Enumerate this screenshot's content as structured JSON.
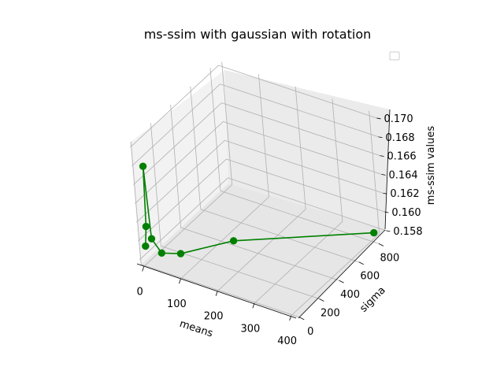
{
  "chart_data": {
    "type": "line",
    "projection": "3d",
    "title": "ms-ssim with gaussian with rotation",
    "xlabel": "means",
    "ylabel": "sigma",
    "zlabel": "ms-ssim values",
    "xlim": [
      -10,
      420
    ],
    "ylim": [
      -10,
      880
    ],
    "zlim": [
      0.1574,
      0.1705
    ],
    "xticks": [
      "0",
      "100",
      "200",
      "300",
      "400"
    ],
    "yticks": [
      "0",
      "200",
      "400",
      "600",
      "800"
    ],
    "zticks": [
      "0.158",
      "0.160",
      "0.162",
      "0.164",
      "0.166",
      "0.168",
      "0.170"
    ],
    "grid": true,
    "legend": "top-right, empty",
    "series": [
      {
        "color": "#008000",
        "marker": "circle",
        "x": [
          5,
          5,
          15,
          25,
          50,
          100,
          200,
          400
        ],
        "y": [
          5,
          25,
          10,
          0,
          0,
          10,
          180,
          830
        ],
        "z": [
          0.1595,
          0.1614,
          0.1681,
          0.1606,
          0.1594,
          0.1599,
          0.1609,
          0.158
        ]
      }
    ]
  }
}
